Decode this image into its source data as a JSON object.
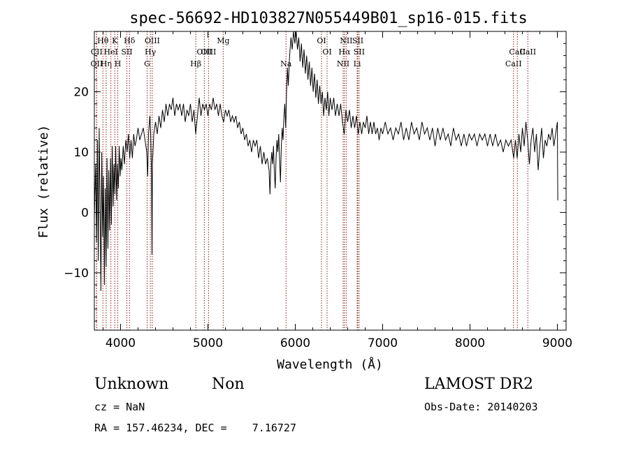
{
  "chart_data": {
    "type": "line",
    "title": "spec-56692-HD103827N055449B01_sp16-015.fits",
    "xlabel": "Wavelength (Å)",
    "ylabel": "Flux (relative)",
    "xlim": [
      3700,
      9100
    ],
    "ylim": [
      -19.5,
      30
    ],
    "x_ticks": [
      4000,
      5000,
      6000,
      7000,
      8000,
      9000
    ],
    "y_ticks": [
      -10,
      0,
      10,
      20
    ],
    "grid": false,
    "line_color": "#000000",
    "marker_color": "#8b1a1a",
    "series": [
      {
        "points": [
          [
            3700,
            -1
          ],
          [
            3715,
            8
          ],
          [
            3725,
            -5
          ],
          [
            3735,
            12
          ],
          [
            3745,
            -8
          ],
          [
            3755,
            14
          ],
          [
            3765,
            2
          ],
          [
            3775,
            -13
          ],
          [
            3785,
            10
          ],
          [
            3795,
            -4
          ],
          [
            3805,
            6
          ],
          [
            3815,
            -12
          ],
          [
            3825,
            4
          ],
          [
            3835,
            -9
          ],
          [
            3845,
            9
          ],
          [
            3855,
            -6
          ],
          [
            3865,
            7
          ],
          [
            3875,
            -3
          ],
          [
            3885,
            9
          ],
          [
            3895,
            -2
          ],
          [
            3905,
            11
          ],
          [
            3915,
            1
          ],
          [
            3925,
            8
          ],
          [
            3935,
            3
          ],
          [
            3945,
            11
          ],
          [
            3955,
            2
          ],
          [
            3965,
            8
          ],
          [
            3975,
            4
          ],
          [
            3985,
            11
          ],
          [
            3995,
            6
          ],
          [
            4005,
            9
          ],
          [
            4015,
            7
          ],
          [
            4030,
            11
          ],
          [
            4045,
            8
          ],
          [
            4060,
            12
          ],
          [
            4075,
            10
          ],
          [
            4090,
            13
          ],
          [
            4105,
            9
          ],
          [
            4120,
            12
          ],
          [
            4135,
            9
          ],
          [
            4150,
            13
          ],
          [
            4165,
            11
          ],
          [
            4180,
            12
          ],
          [
            4200,
            14
          ],
          [
            4220,
            12
          ],
          [
            4240,
            13
          ],
          [
            4260,
            14
          ],
          [
            4280,
            12
          ],
          [
            4300,
            10
          ],
          [
            4310,
            6
          ],
          [
            4320,
            13
          ],
          [
            4335,
            16
          ],
          [
            4345,
            13
          ],
          [
            4355,
            6
          ],
          [
            4360,
            -7
          ],
          [
            4365,
            8
          ],
          [
            4380,
            13
          ],
          [
            4400,
            15
          ],
          [
            4420,
            13
          ],
          [
            4440,
            16
          ],
          [
            4460,
            14
          ],
          [
            4480,
            17
          ],
          [
            4500,
            15
          ],
          [
            4520,
            18
          ],
          [
            4540,
            16
          ],
          [
            4560,
            18
          ],
          [
            4580,
            17
          ],
          [
            4600,
            19
          ],
          [
            4620,
            16
          ],
          [
            4640,
            18
          ],
          [
            4660,
            17
          ],
          [
            4680,
            18
          ],
          [
            4700,
            16
          ],
          [
            4720,
            18
          ],
          [
            4740,
            15
          ],
          [
            4760,
            17
          ],
          [
            4780,
            16
          ],
          [
            4800,
            18
          ],
          [
            4820,
            15
          ],
          [
            4840,
            17
          ],
          [
            4860,
            13
          ],
          [
            4880,
            16
          ],
          [
            4900,
            19
          ],
          [
            4920,
            16
          ],
          [
            4940,
            18
          ],
          [
            4960,
            17
          ],
          [
            4980,
            18
          ],
          [
            5000,
            16
          ],
          [
            5020,
            18
          ],
          [
            5040,
            17
          ],
          [
            5060,
            19
          ],
          [
            5080,
            17
          ],
          [
            5100,
            18
          ],
          [
            5120,
            16
          ],
          [
            5140,
            18
          ],
          [
            5160,
            16
          ],
          [
            5180,
            15
          ],
          [
            5200,
            17
          ],
          [
            5220,
            16
          ],
          [
            5240,
            17
          ],
          [
            5260,
            15
          ],
          [
            5280,
            16
          ],
          [
            5300,
            15
          ],
          [
            5320,
            16
          ],
          [
            5340,
            14
          ],
          [
            5360,
            15
          ],
          [
            5380,
            13
          ],
          [
            5400,
            14
          ],
          [
            5420,
            12
          ],
          [
            5440,
            13
          ],
          [
            5460,
            11
          ],
          [
            5480,
            12
          ],
          [
            5500,
            10
          ],
          [
            5520,
            12
          ],
          [
            5540,
            11
          ],
          [
            5560,
            12
          ],
          [
            5580,
            9
          ],
          [
            5600,
            11
          ],
          [
            5620,
            8
          ],
          [
            5640,
            10
          ],
          [
            5660,
            8
          ],
          [
            5680,
            9
          ],
          [
            5700,
            7
          ],
          [
            5710,
            3
          ],
          [
            5720,
            8
          ],
          [
            5730,
            10
          ],
          [
            5740,
            8
          ],
          [
            5750,
            11
          ],
          [
            5760,
            7
          ],
          [
            5770,
            4
          ],
          [
            5780,
            9
          ],
          [
            5790,
            12
          ],
          [
            5800,
            10
          ],
          [
            5810,
            13
          ],
          [
            5820,
            9
          ],
          [
            5830,
            5
          ],
          [
            5840,
            11
          ],
          [
            5850,
            14
          ],
          [
            5860,
            12
          ],
          [
            5870,
            16
          ],
          [
            5880,
            18
          ],
          [
            5890,
            14
          ],
          [
            5900,
            20
          ],
          [
            5910,
            24
          ],
          [
            5920,
            21
          ],
          [
            5935,
            26
          ],
          [
            5950,
            29
          ],
          [
            5965,
            27
          ],
          [
            5980,
            30
          ],
          [
            5995,
            28
          ],
          [
            6010,
            30
          ],
          [
            6025,
            27
          ],
          [
            6040,
            29
          ],
          [
            6055,
            25
          ],
          [
            6070,
            28
          ],
          [
            6085,
            24
          ],
          [
            6100,
            27
          ],
          [
            6115,
            23
          ],
          [
            6130,
            26
          ],
          [
            6145,
            22
          ],
          [
            6160,
            25
          ],
          [
            6175,
            21
          ],
          [
            6190,
            24
          ],
          [
            6205,
            20
          ],
          [
            6220,
            23
          ],
          [
            6235,
            19
          ],
          [
            6250,
            22
          ],
          [
            6265,
            18
          ],
          [
            6280,
            21
          ],
          [
            6295,
            18
          ],
          [
            6310,
            20
          ],
          [
            6325,
            16
          ],
          [
            6340,
            19
          ],
          [
            6355,
            17
          ],
          [
            6370,
            20
          ],
          [
            6385,
            16
          ],
          [
            6400,
            19
          ],
          [
            6420,
            17
          ],
          [
            6440,
            19
          ],
          [
            6460,
            16
          ],
          [
            6480,
            18
          ],
          [
            6500,
            16
          ],
          [
            6520,
            18
          ],
          [
            6540,
            15
          ],
          [
            6560,
            13
          ],
          [
            6580,
            17
          ],
          [
            6600,
            15
          ],
          [
            6620,
            17
          ],
          [
            6640,
            14
          ],
          [
            6660,
            16
          ],
          [
            6680,
            14
          ],
          [
            6700,
            16
          ],
          [
            6720,
            13
          ],
          [
            6740,
            15
          ],
          [
            6760,
            13
          ],
          [
            6780,
            15
          ],
          [
            6800,
            14
          ],
          [
            6820,
            16
          ],
          [
            6840,
            13
          ],
          [
            6860,
            15
          ],
          [
            6880,
            13
          ],
          [
            6900,
            15
          ],
          [
            6920,
            13
          ],
          [
            6940,
            14
          ],
          [
            6960,
            12
          ],
          [
            6980,
            14
          ],
          [
            7000,
            13
          ],
          [
            7030,
            15
          ],
          [
            7060,
            13
          ],
          [
            7090,
            14
          ],
          [
            7120,
            12
          ],
          [
            7150,
            14
          ],
          [
            7180,
            13
          ],
          [
            7210,
            15
          ],
          [
            7240,
            12
          ],
          [
            7270,
            14
          ],
          [
            7300,
            12
          ],
          [
            7330,
            15
          ],
          [
            7360,
            13
          ],
          [
            7390,
            14
          ],
          [
            7420,
            12
          ],
          [
            7450,
            15
          ],
          [
            7480,
            13
          ],
          [
            7510,
            14
          ],
          [
            7540,
            12
          ],
          [
            7570,
            14
          ],
          [
            7600,
            11
          ],
          [
            7630,
            14
          ],
          [
            7660,
            12
          ],
          [
            7690,
            14
          ],
          [
            7720,
            12
          ],
          [
            7750,
            13
          ],
          [
            7780,
            11
          ],
          [
            7810,
            14
          ],
          [
            7840,
            12
          ],
          [
            7870,
            13
          ],
          [
            7900,
            11
          ],
          [
            7930,
            13
          ],
          [
            7960,
            11
          ],
          [
            7990,
            13
          ],
          [
            8020,
            12
          ],
          [
            8050,
            13
          ],
          [
            8080,
            11
          ],
          [
            8110,
            13
          ],
          [
            8140,
            12
          ],
          [
            8170,
            13
          ],
          [
            8200,
            11
          ],
          [
            8230,
            13
          ],
          [
            8260,
            11
          ],
          [
            8290,
            13
          ],
          [
            8320,
            11
          ],
          [
            8350,
            12
          ],
          [
            8380,
            10
          ],
          [
            8410,
            12
          ],
          [
            8440,
            11
          ],
          [
            8470,
            12
          ],
          [
            8500,
            9
          ],
          [
            8520,
            12
          ],
          [
            8540,
            9
          ],
          [
            8560,
            13
          ],
          [
            8580,
            10
          ],
          [
            8600,
            14
          ],
          [
            8620,
            11
          ],
          [
            8640,
            15
          ],
          [
            8660,
            12
          ],
          [
            8680,
            8
          ],
          [
            8700,
            12
          ],
          [
            8720,
            14
          ],
          [
            8740,
            10
          ],
          [
            8760,
            13
          ],
          [
            8780,
            7
          ],
          [
            8800,
            11
          ],
          [
            8820,
            14
          ],
          [
            8840,
            9
          ],
          [
            8860,
            12
          ],
          [
            8880,
            11
          ],
          [
            8900,
            13
          ],
          [
            8920,
            12
          ],
          [
            8940,
            14
          ],
          [
            8960,
            11
          ],
          [
            8980,
            13
          ],
          [
            9000,
            15
          ],
          [
            9005,
            2
          ]
        ]
      }
    ],
    "line_markers": [
      {
        "label": "CII",
        "wavelength": 3726,
        "row": 2
      },
      {
        "label": "OII",
        "wavelength": 3727,
        "row": 3
      },
      {
        "label": "Hθ",
        "wavelength": 3798,
        "row": 1
      },
      {
        "label": "Hη",
        "wavelength": 3835,
        "row": 3
      },
      {
        "label": "HeI",
        "wavelength": 3889,
        "row": 2
      },
      {
        "label": "K",
        "wavelength": 3934,
        "row": 1
      },
      {
        "label": "H",
        "wavelength": 3968,
        "row": 3
      },
      {
        "label": "SII",
        "wavelength": 4072,
        "row": 2
      },
      {
        "label": "Hδ",
        "wavelength": 4102,
        "row": 1
      },
      {
        "label": "G",
        "wavelength": 4304,
        "row": 3
      },
      {
        "label": "Hγ",
        "wavelength": 4341,
        "row": 2
      },
      {
        "label": "OIII",
        "wavelength": 4363,
        "row": 1
      },
      {
        "label": "Hβ",
        "wavelength": 4861,
        "row": 3
      },
      {
        "label": "OIII",
        "wavelength": 4959,
        "row": 2
      },
      {
        "label": "OIII",
        "wavelength": 5007,
        "row": 2
      },
      {
        "label": "Mg",
        "wavelength": 5175,
        "row": 1
      },
      {
        "label": "Na",
        "wavelength": 5894,
        "row": 3
      },
      {
        "label": "OI",
        "wavelength": 6300,
        "row": 1
      },
      {
        "label": "OI",
        "wavelength": 6364,
        "row": 2
      },
      {
        "label": "NII",
        "wavelength": 6548,
        "row": 3
      },
      {
        "label": "Hα",
        "wavelength": 6563,
        "row": 2
      },
      {
        "label": "NII",
        "wavelength": 6583,
        "row": 1
      },
      {
        "label": "Li",
        "wavelength": 6708,
        "row": 3
      },
      {
        "label": "SII",
        "wavelength": 6716,
        "row": 1
      },
      {
        "label": "SII",
        "wavelength": 6731,
        "row": 2
      },
      {
        "label": "CaII",
        "wavelength": 8498,
        "row": 3
      },
      {
        "label": "CaII",
        "wavelength": 8542,
        "row": 2
      },
      {
        "label": "CaII",
        "wavelength": 8662,
        "row": 2
      }
    ]
  },
  "info": {
    "classification": "Unknown",
    "subclass": "Non",
    "survey": "LAMOST DR2",
    "redshift": "cz = NaN",
    "obs_date": "Obs-Date: 20140203",
    "coords": "RA = 157.46234, DEC =    7.16727"
  }
}
